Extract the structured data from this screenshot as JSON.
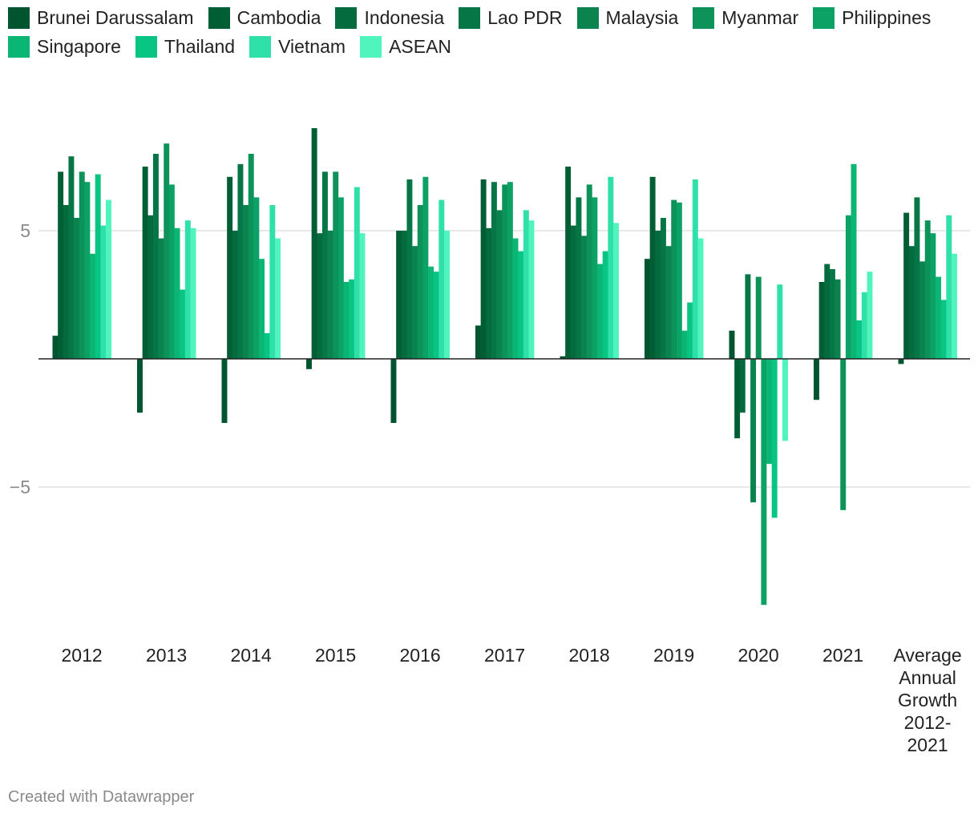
{
  "chart_data": {
    "type": "bar",
    "title": "",
    "xlabel": "",
    "ylabel": "",
    "ylim": [
      -10.5,
      10
    ],
    "yticks": [
      5,
      -5
    ],
    "ytick_labels": [
      "5",
      "−5"
    ],
    "categories": [
      "2012",
      "2013",
      "2014",
      "2015",
      "2016",
      "2017",
      "2018",
      "2019",
      "2020",
      "2021",
      "Average Annual Growth 2012-2021"
    ],
    "series": [
      {
        "name": "Brunei Darussalam",
        "color": "#00542f",
        "values": [
          0.9,
          -2.1,
          -2.5,
          -0.4,
          -2.5,
          1.3,
          0.1,
          3.9,
          1.1,
          -1.6,
          -0.2
        ]
      },
      {
        "name": "Cambodia",
        "color": "#005e35",
        "values": [
          7.3,
          7.5,
          7.1,
          9.0,
          5.0,
          7.0,
          7.5,
          7.1,
          -3.1,
          3.0,
          5.7
        ]
      },
      {
        "name": "Indonesia",
        "color": "#036b3d",
        "values": [
          6.0,
          5.6,
          5.0,
          4.9,
          5.0,
          5.1,
          5.2,
          5.0,
          -2.1,
          3.7,
          4.4
        ]
      },
      {
        "name": "Lao PDR",
        "color": "#077646",
        "values": [
          7.9,
          8.0,
          7.6,
          7.3,
          7.0,
          6.9,
          6.3,
          5.5,
          3.3,
          3.5,
          6.3
        ]
      },
      {
        "name": "Malaysia",
        "color": "#0a834f",
        "values": [
          5.5,
          4.7,
          6.0,
          5.0,
          4.4,
          5.8,
          4.8,
          4.4,
          -5.6,
          3.1,
          3.8
        ]
      },
      {
        "name": "Myanmar",
        "color": "#0d925a",
        "values": [
          7.3,
          8.4,
          8.0,
          7.3,
          6.0,
          6.8,
          6.8,
          6.2,
          3.2,
          -5.9,
          5.4
        ]
      },
      {
        "name": "Philippines",
        "color": "#0ca266",
        "values": [
          6.9,
          6.8,
          6.3,
          6.3,
          7.1,
          6.9,
          6.3,
          6.1,
          -9.6,
          5.6,
          4.9
        ]
      },
      {
        "name": "Singapore",
        "color": "#0bb573",
        "values": [
          4.1,
          5.1,
          3.9,
          3.0,
          3.6,
          4.7,
          3.7,
          1.1,
          -4.1,
          7.6,
          3.2
        ]
      },
      {
        "name": "Thailand",
        "color": "#08c584",
        "values": [
          7.2,
          2.7,
          1.0,
          3.1,
          3.4,
          4.2,
          4.2,
          2.2,
          -6.2,
          1.5,
          2.3
        ]
      },
      {
        "name": "Vietnam",
        "color": "#2fe0a8",
        "values": [
          5.2,
          5.4,
          6.0,
          6.7,
          6.2,
          5.8,
          7.1,
          7.0,
          2.9,
          2.6,
          5.6
        ]
      },
      {
        "name": "ASEAN",
        "color": "#50f4bd",
        "values": [
          6.2,
          5.1,
          4.7,
          4.9,
          5.0,
          5.4,
          5.3,
          4.7,
          -3.2,
          3.4,
          4.1
        ]
      }
    ]
  },
  "footer": {
    "credit": "Created with Datawrapper"
  }
}
